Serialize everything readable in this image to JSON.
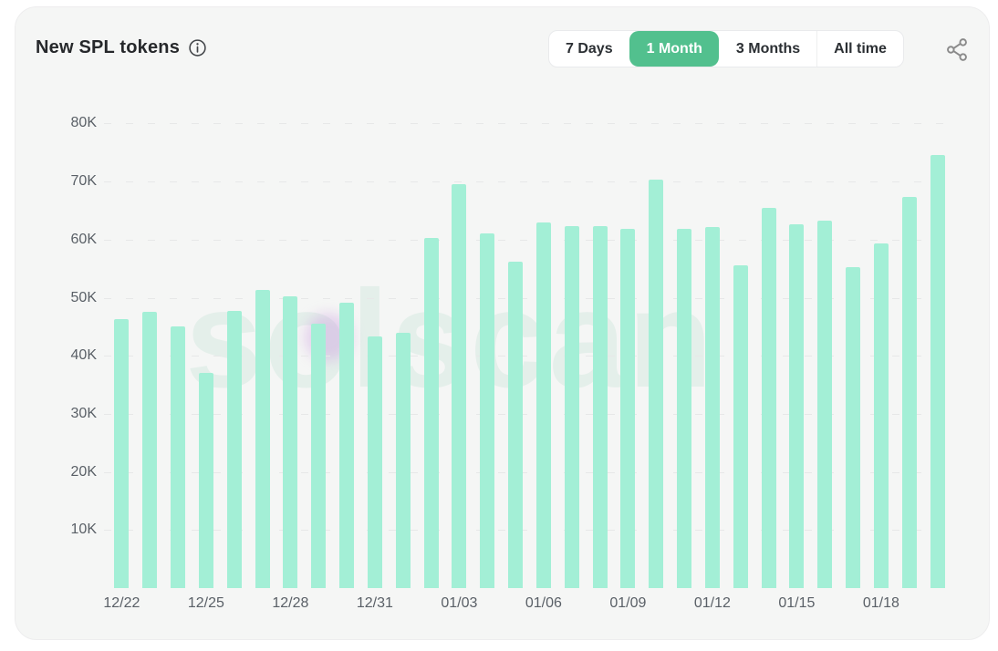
{
  "header": {
    "title": "New SPL tokens",
    "info_icon": "info-circle-icon",
    "range_tabs": [
      {
        "label": "7 Days",
        "selected": false
      },
      {
        "label": "1 Month",
        "selected": true
      },
      {
        "label": "3 Months",
        "selected": false
      },
      {
        "label": "All time",
        "selected": false
      }
    ],
    "share_icon": "share-nodes-icon"
  },
  "colors": {
    "card_bg": "#f5f6f5",
    "bar": "#a3efd6",
    "tab_selected_bg": "#52c08e",
    "tab_selected_text": "#ffffff",
    "tab_text": "#2b2f33",
    "axis_text": "#5a6067",
    "grid_line": "#e7e8e8",
    "title_text": "#26282b",
    "icon_gray": "#8a8a8a"
  },
  "chart_data": {
    "type": "bar",
    "title": "New SPL tokens",
    "selected_range": "1 Month",
    "watermark": "solscan",
    "grid": "dashed-horizontal",
    "legend": "none",
    "ylim": [
      0,
      85000
    ],
    "x_tick_every": 3,
    "x_tick_labels": [
      "12/22",
      "12/25",
      "12/28",
      "12/31",
      "01/03",
      "01/06",
      "01/09",
      "01/12",
      "01/15",
      "01/18"
    ],
    "y_ticks": [
      {
        "label": "10K",
        "value": 10000
      },
      {
        "label": "20K",
        "value": 20000
      },
      {
        "label": "30K",
        "value": 30000
      },
      {
        "label": "40K",
        "value": 40000
      },
      {
        "label": "50K",
        "value": 50000
      },
      {
        "label": "60K",
        "value": 60000
      },
      {
        "label": "70K",
        "value": 70000
      },
      {
        "label": "80K",
        "value": 80000
      }
    ],
    "categories": [
      "12/22",
      "12/23",
      "12/24",
      "12/25",
      "12/26",
      "12/27",
      "12/28",
      "12/29",
      "12/30",
      "12/31",
      "01/01",
      "01/02",
      "01/03",
      "01/04",
      "01/05",
      "01/06",
      "01/07",
      "01/08",
      "01/09",
      "01/10",
      "01/11",
      "01/12",
      "01/13",
      "01/14",
      "01/15",
      "01/16",
      "01/17",
      "01/18",
      "01/19",
      "01/20"
    ],
    "values": [
      46300,
      47500,
      45100,
      37000,
      47800,
      51300,
      50200,
      45500,
      49100,
      43400,
      44000,
      60300,
      69500,
      61000,
      56200,
      63000,
      62400,
      62300,
      61900,
      70300,
      61800,
      62100,
      55600,
      65500,
      62600,
      63300,
      55300,
      59300,
      67300,
      74600
    ]
  }
}
